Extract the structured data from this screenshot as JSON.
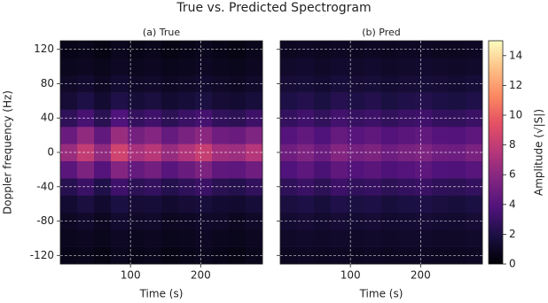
{
  "title": "True vs. Predicted Spectrogram",
  "colorbar": {
    "label": "Amplitude (√|S|)",
    "lim": [
      0,
      15
    ],
    "ticks": [
      0,
      2,
      4,
      6,
      8,
      10,
      12,
      14
    ],
    "colormap": "magma"
  },
  "chart_data": [
    {
      "type": "heatmap",
      "title": "(a) True",
      "xlabel": "Time (s)",
      "ylabel": "Doppler frequency (Hz)",
      "show_yticklabels": true,
      "x": [
        12,
        36,
        60,
        84,
        108,
        132,
        156,
        180,
        204,
        228,
        252,
        276
      ],
      "y": [
        -120,
        -100,
        -80,
        -60,
        -40,
        -20,
        0,
        20,
        40,
        60,
        80,
        100,
        120
      ],
      "z": [
        [
          0.6,
          0.7,
          0.5,
          0.8,
          0.6,
          0.7,
          0.5,
          0.6,
          0.8,
          0.6,
          0.5,
          0.7
        ],
        [
          0.8,
          0.9,
          0.7,
          1.0,
          0.8,
          0.9,
          0.7,
          0.8,
          1.0,
          0.8,
          0.7,
          0.9
        ],
        [
          1.0,
          1.2,
          0.9,
          1.3,
          1.1,
          1.2,
          0.9,
          1.0,
          1.2,
          1.1,
          0.9,
          1.1
        ],
        [
          1.4,
          1.8,
          1.3,
          1.9,
          1.5,
          1.6,
          1.3,
          1.5,
          1.7,
          1.4,
          1.3,
          1.6
        ],
        [
          2.3,
          3.0,
          2.1,
          3.2,
          2.5,
          2.8,
          2.2,
          2.6,
          3.0,
          2.4,
          2.2,
          2.7
        ],
        [
          4.2,
          5.5,
          4.0,
          5.8,
          4.6,
          5.1,
          4.1,
          4.8,
          5.5,
          4.4,
          4.3,
          5.0
        ],
        [
          6.5,
          8.0,
          6.2,
          8.5,
          7.0,
          7.6,
          6.4,
          7.3,
          8.2,
          6.8,
          6.6,
          7.5
        ],
        [
          4.8,
          6.2,
          4.5,
          6.5,
          5.2,
          5.8,
          4.6,
          5.4,
          6.0,
          5.0,
          4.8,
          5.6
        ],
        [
          2.6,
          3.5,
          2.4,
          3.8,
          2.8,
          3.2,
          2.5,
          3.0,
          3.4,
          2.7,
          2.5,
          3.1
        ],
        [
          1.5,
          2.0,
          1.4,
          2.1,
          1.6,
          1.8,
          1.4,
          1.6,
          1.9,
          1.5,
          1.4,
          1.7
        ],
        [
          1.1,
          1.3,
          1.0,
          1.4,
          1.1,
          1.2,
          1.0,
          1.1,
          1.3,
          1.1,
          1.0,
          1.2
        ],
        [
          0.8,
          0.9,
          0.7,
          1.0,
          0.8,
          0.9,
          0.7,
          0.8,
          1.0,
          0.8,
          0.7,
          0.9
        ],
        [
          0.6,
          0.7,
          0.5,
          0.8,
          0.6,
          0.7,
          0.5,
          0.6,
          0.8,
          0.6,
          0.5,
          0.7
        ]
      ],
      "xlim": [
        0,
        288
      ],
      "ylim": [
        -130,
        130
      ],
      "xticks": [
        100,
        200
      ],
      "yticks": [
        -120,
        -80,
        -40,
        0,
        40,
        80,
        120
      ],
      "grid": true
    },
    {
      "type": "heatmap",
      "title": "(b) Pred",
      "xlabel": "Time (s)",
      "show_yticklabels": false,
      "x": [
        12,
        36,
        60,
        84,
        108,
        132,
        156,
        180,
        204,
        228,
        252,
        276
      ],
      "y": [
        -120,
        -100,
        -80,
        -60,
        -40,
        -20,
        0,
        20,
        40,
        60,
        80,
        100,
        120
      ],
      "z": [
        [
          0.9,
          1.0,
          0.9,
          1.0,
          0.9,
          1.0,
          0.9,
          1.0,
          1.0,
          0.9,
          0.9,
          1.0
        ],
        [
          1.1,
          1.2,
          1.1,
          1.2,
          1.1,
          1.2,
          1.1,
          1.2,
          1.2,
          1.1,
          1.1,
          1.2
        ],
        [
          1.4,
          1.5,
          1.3,
          1.5,
          1.4,
          1.5,
          1.3,
          1.4,
          1.5,
          1.4,
          1.3,
          1.5
        ],
        [
          1.8,
          2.0,
          1.7,
          2.1,
          1.9,
          2.0,
          1.7,
          1.9,
          2.0,
          1.8,
          1.7,
          1.9
        ],
        [
          2.6,
          3.0,
          2.5,
          3.1,
          2.7,
          2.9,
          2.5,
          2.8,
          3.0,
          2.6,
          2.5,
          2.8
        ],
        [
          3.8,
          4.3,
          3.6,
          4.4,
          3.9,
          4.2,
          3.7,
          4.0,
          4.3,
          3.8,
          3.7,
          4.1
        ],
        [
          5.0,
          5.6,
          4.8,
          5.8,
          5.2,
          5.5,
          4.9,
          5.3,
          5.6,
          5.0,
          4.9,
          5.4
        ],
        [
          4.0,
          4.5,
          3.8,
          4.6,
          4.1,
          4.4,
          3.9,
          4.2,
          4.5,
          4.0,
          3.9,
          4.3
        ],
        [
          2.8,
          3.2,
          2.7,
          3.3,
          2.9,
          3.1,
          2.7,
          3.0,
          3.2,
          2.8,
          2.7,
          3.0
        ],
        [
          2.0,
          2.2,
          1.9,
          2.3,
          2.0,
          2.2,
          1.9,
          2.1,
          2.2,
          2.0,
          1.9,
          2.1
        ],
        [
          1.5,
          1.6,
          1.4,
          1.7,
          1.5,
          1.6,
          1.4,
          1.5,
          1.6,
          1.5,
          1.4,
          1.6
        ],
        [
          1.2,
          1.3,
          1.1,
          1.3,
          1.2,
          1.3,
          1.1,
          1.2,
          1.3,
          1.2,
          1.1,
          1.2
        ],
        [
          0.9,
          1.0,
          0.9,
          1.0,
          0.9,
          1.0,
          0.9,
          1.0,
          1.0,
          0.9,
          0.9,
          1.0
        ]
      ],
      "xlim": [
        0,
        288
      ],
      "ylim": [
        -130,
        130
      ],
      "xticks": [
        100,
        200
      ],
      "yticks": [
        -120,
        -80,
        -40,
        0,
        40,
        80,
        120
      ],
      "grid": true
    }
  ]
}
